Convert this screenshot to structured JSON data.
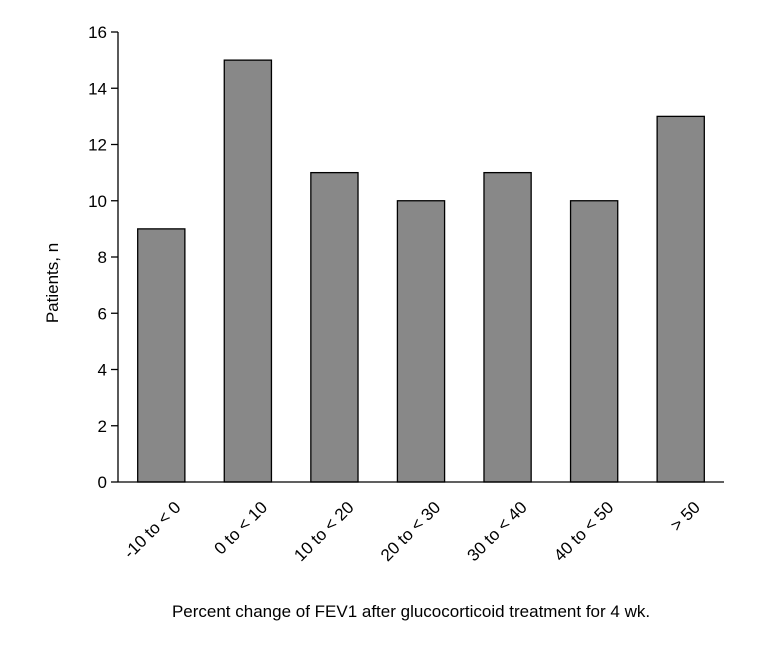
{
  "chart_data": {
    "type": "bar",
    "title": "",
    "xlabel": "Percent change of FEV1 after glucocorticoid treatment for 4 wk.",
    "ylabel": "Patients, n",
    "categories": [
      "-10 to < 0",
      "0 to < 10",
      "10 to < 20",
      "20 to < 30",
      "30 to < 40",
      "40 to < 50",
      "> 50"
    ],
    "values": [
      9,
      15,
      11,
      10,
      11,
      10,
      13
    ],
    "ylim": [
      0,
      16
    ],
    "yticks": [
      0,
      2,
      4,
      6,
      8,
      10,
      12,
      14,
      16
    ],
    "grid": false,
    "legend": "none",
    "bar_color": "#888888",
    "bar_edge_color": "#000000"
  }
}
